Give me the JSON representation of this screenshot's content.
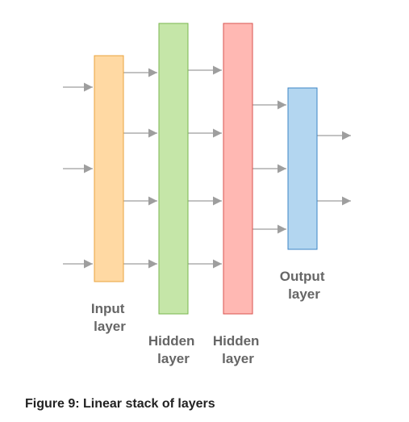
{
  "layers": {
    "input": {
      "label_line1": "Input",
      "label_line2": "layer",
      "fill": "#ffd9a3",
      "stroke": "#e8a33d"
    },
    "hidden1": {
      "label_line1": "Hidden",
      "label_line2": "layer",
      "fill": "#c5e6a8",
      "stroke": "#79b64e"
    },
    "hidden2": {
      "label_line1": "Hidden",
      "label_line2": "layer",
      "fill": "#ffb8b3",
      "stroke": "#d9534f"
    },
    "output": {
      "label_line1": "Output",
      "label_line2": "layer",
      "fill": "#b3d6f0",
      "stroke": "#3d85c6"
    }
  },
  "arrow_color": "#9e9e9e",
  "label_color": "#666666",
  "caption": "Figure 9: Linear stack of layers"
}
